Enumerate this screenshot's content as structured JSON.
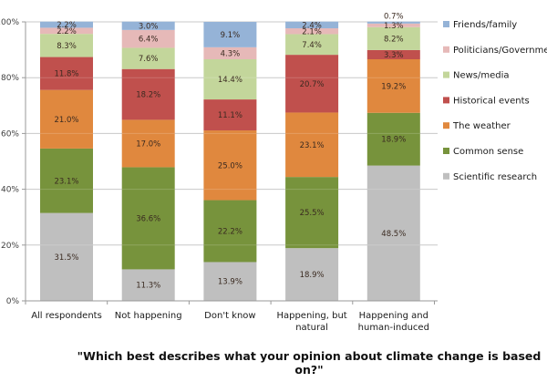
{
  "chart_data": {
    "type": "bar",
    "stacked": true,
    "percent": true,
    "title": "",
    "caption": "\"Which best describes what your opinion about climate change is based on?\"",
    "xlabel": "",
    "ylabel": "",
    "ylim": [
      0,
      100
    ],
    "yticks": [
      "0%",
      "20%",
      "40%",
      "60%",
      "80%",
      "100%"
    ],
    "ytick_values": [
      0,
      20,
      40,
      60,
      80,
      100
    ],
    "grid": true,
    "legend_position": "right",
    "categories": [
      [
        "All respondents"
      ],
      [
        "Not happening"
      ],
      [
        "Don't know"
      ],
      [
        "Happening, but",
        "natural"
      ],
      [
        "Happening and",
        "human-induced"
      ]
    ],
    "series": [
      {
        "name": "Scientific research",
        "color": "#BFBFBF",
        "values": [
          31.5,
          11.3,
          13.9,
          18.9,
          48.5
        ],
        "labels": [
          "31.5%",
          "11.3%",
          "13.9%",
          "18.9%",
          "48.5%"
        ]
      },
      {
        "name": "Common sense",
        "color": "#77933C",
        "values": [
          23.1,
          36.6,
          22.2,
          25.5,
          18.9
        ],
        "labels": [
          "23.1%",
          "36.6%",
          "22.2%",
          "25.5%",
          "18.9%"
        ]
      },
      {
        "name": "The weather",
        "color": "#E0883E",
        "values": [
          21.0,
          17.0,
          25.0,
          23.1,
          19.2
        ],
        "labels": [
          "21.0%",
          "17.0%",
          "25.0%",
          "23.1%",
          "19.2%"
        ]
      },
      {
        "name": "Historical events",
        "color": "#C0504D",
        "values": [
          11.8,
          18.2,
          11.1,
          20.7,
          3.3
        ],
        "labels": [
          "11.8%",
          "18.2%",
          "11.1%",
          "20.7%",
          "3.3%"
        ]
      },
      {
        "name": "News/media",
        "color": "#C3D69B",
        "values": [
          8.3,
          7.6,
          14.4,
          7.4,
          8.2
        ],
        "labels": [
          "8.3%",
          "7.6%",
          "14.4%",
          "7.4%",
          "8.2%"
        ]
      },
      {
        "name": "Politicians/Government",
        "color": "#E6B9B8",
        "values": [
          2.2,
          6.4,
          4.3,
          2.1,
          1.3
        ],
        "labels": [
          "2.2%",
          "6.4%",
          "4.3%",
          "2.1%",
          "1.3%"
        ]
      },
      {
        "name": "Friends/family",
        "color": "#95B3D7",
        "values": [
          2.2,
          3.0,
          9.1,
          2.4,
          0.7
        ],
        "labels": [
          "2.2%",
          "3.0%",
          "9.1%",
          "2.4%",
          "0.7%"
        ]
      }
    ],
    "legend_order": [
      "Friends/family",
      "Politicians/Government",
      "News/media",
      "Historical events",
      "The weather",
      "Common sense",
      "Scientific research"
    ]
  }
}
